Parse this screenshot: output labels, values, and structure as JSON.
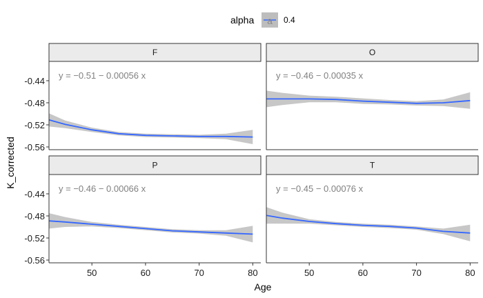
{
  "chart_data": {
    "type": "line",
    "xlabel": "Age",
    "ylabel": "K_corrected",
    "xlim": [
      42,
      81.5
    ],
    "ylim": [
      -0.565,
      -0.405
    ],
    "x_ticks": [
      50,
      60,
      70,
      80
    ],
    "y_ticks": [
      -0.44,
      -0.48,
      -0.52,
      -0.56
    ],
    "x_tick_labels": [
      "50",
      "60",
      "70",
      "80"
    ],
    "y_tick_labels": [
      "-0.44",
      "-0.48",
      "-0.52",
      "-0.56"
    ],
    "legend": {
      "title": "alpha",
      "key_glyph": "a",
      "label": "0.4",
      "placement": "top"
    },
    "colors": {
      "line": "#3366FF",
      "ribbon": "#BDBDBD",
      "strip_fill": "#EBEBEB",
      "equation": "#808080"
    },
    "panels": [
      {
        "label": "F",
        "equation": "y = −0.51 − 0.00056 x",
        "x": [
          42,
          45,
          50,
          55,
          60,
          65,
          70,
          75,
          80
        ],
        "y": [
          -0.511,
          -0.519,
          -0.529,
          -0.536,
          -0.539,
          -0.54,
          -0.541,
          -0.541,
          -0.542
        ],
        "upper": [
          -0.499,
          -0.512,
          -0.525,
          -0.533,
          -0.536,
          -0.537,
          -0.538,
          -0.536,
          -0.529
        ],
        "lower": [
          -0.523,
          -0.526,
          -0.533,
          -0.539,
          -0.542,
          -0.543,
          -0.544,
          -0.546,
          -0.555
        ]
      },
      {
        "label": "O",
        "equation": "y = −0.46 − 0.00035 x",
        "x": [
          42,
          45,
          50,
          55,
          60,
          65,
          70,
          75,
          80
        ],
        "y": [
          -0.473,
          -0.473,
          -0.473,
          -0.474,
          -0.477,
          -0.479,
          -0.481,
          -0.48,
          -0.476
        ],
        "upper": [
          -0.458,
          -0.462,
          -0.467,
          -0.469,
          -0.472,
          -0.475,
          -0.477,
          -0.474,
          -0.461
        ],
        "lower": [
          -0.488,
          -0.484,
          -0.479,
          -0.479,
          -0.482,
          -0.483,
          -0.485,
          -0.486,
          -0.491
        ]
      },
      {
        "label": "P",
        "equation": "y = −0.46 − 0.00066 x",
        "x": [
          42,
          45,
          50,
          55,
          60,
          65,
          70,
          75,
          80
        ],
        "y": [
          -0.489,
          -0.491,
          -0.495,
          -0.499,
          -0.503,
          -0.507,
          -0.509,
          -0.511,
          -0.513
        ],
        "upper": [
          -0.475,
          -0.482,
          -0.491,
          -0.496,
          -0.5,
          -0.504,
          -0.506,
          -0.506,
          -0.498
        ],
        "lower": [
          -0.503,
          -0.5,
          -0.499,
          -0.502,
          -0.506,
          -0.51,
          -0.512,
          -0.516,
          -0.528
        ]
      },
      {
        "label": "T",
        "equation": "y = −0.45 − 0.00076 x",
        "x": [
          42,
          45,
          50,
          55,
          60,
          65,
          70,
          75,
          80
        ],
        "y": [
          -0.479,
          -0.484,
          -0.49,
          -0.494,
          -0.497,
          -0.499,
          -0.502,
          -0.508,
          -0.511
        ],
        "upper": [
          -0.464,
          -0.474,
          -0.486,
          -0.491,
          -0.494,
          -0.496,
          -0.499,
          -0.503,
          -0.496
        ],
        "lower": [
          -0.494,
          -0.494,
          -0.494,
          -0.497,
          -0.5,
          -0.502,
          -0.505,
          -0.513,
          -0.526
        ]
      }
    ]
  }
}
